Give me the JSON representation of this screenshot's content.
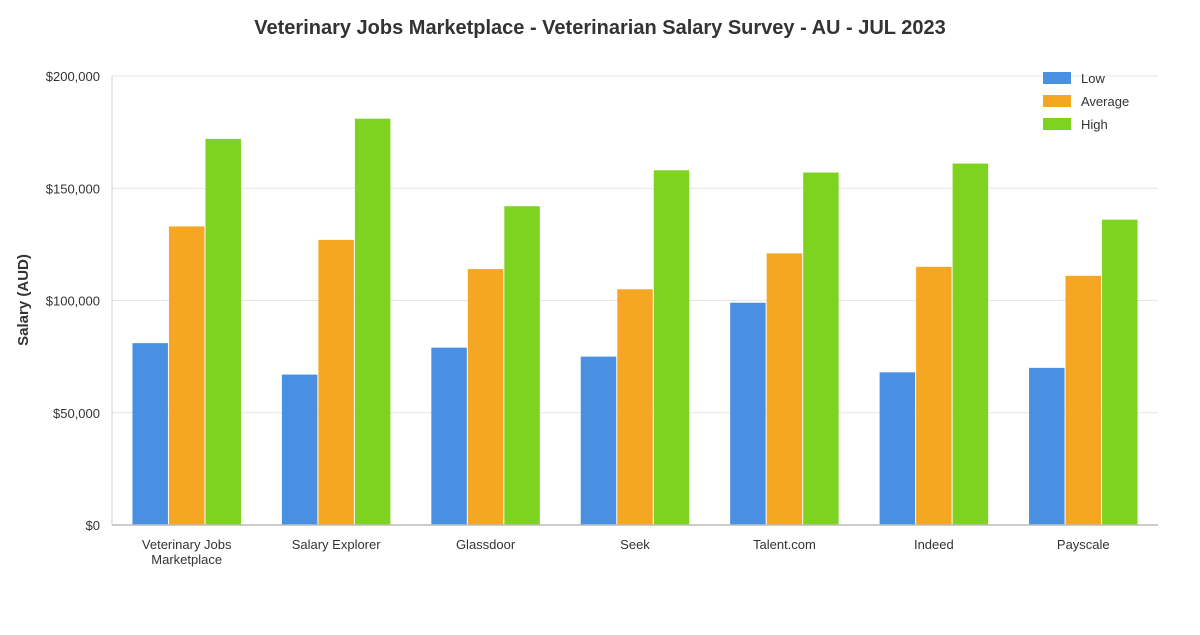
{
  "chart_data": {
    "type": "bar",
    "title": "Veterinary Jobs Marketplace - Veterinarian Salary Survey - AU - JUL 2023",
    "xlabel": "",
    "ylabel": "Salary (AUD)",
    "ylim": [
      0,
      200000
    ],
    "y_ticks": [
      {
        "value": 0,
        "label": "$0"
      },
      {
        "value": 50000,
        "label": "$50,000"
      },
      {
        "value": 100000,
        "label": "$100,000"
      },
      {
        "value": 150000,
        "label": "$150,000"
      },
      {
        "value": 200000,
        "label": "$200,000"
      }
    ],
    "categories": [
      [
        "Veterinary Jobs",
        "Marketplace"
      ],
      [
        "Salary Explorer"
      ],
      [
        "Glassdoor"
      ],
      [
        "Seek"
      ],
      [
        "Talent.com"
      ],
      [
        "Indeed"
      ],
      [
        "Payscale"
      ]
    ],
    "series": [
      {
        "name": "Low",
        "color": "#4a90e2",
        "values": [
          81000,
          67000,
          79000,
          75000,
          99000,
          68000,
          70000
        ]
      },
      {
        "name": "Average",
        "color": "#f5a623",
        "values": [
          133000,
          127000,
          114000,
          105000,
          121000,
          115000,
          111000
        ]
      },
      {
        "name": "High",
        "color": "#7ed321",
        "values": [
          172000,
          181000,
          142000,
          158000,
          157000,
          161000,
          136000
        ]
      }
    ],
    "grid": true,
    "legend_position": "top-right"
  }
}
